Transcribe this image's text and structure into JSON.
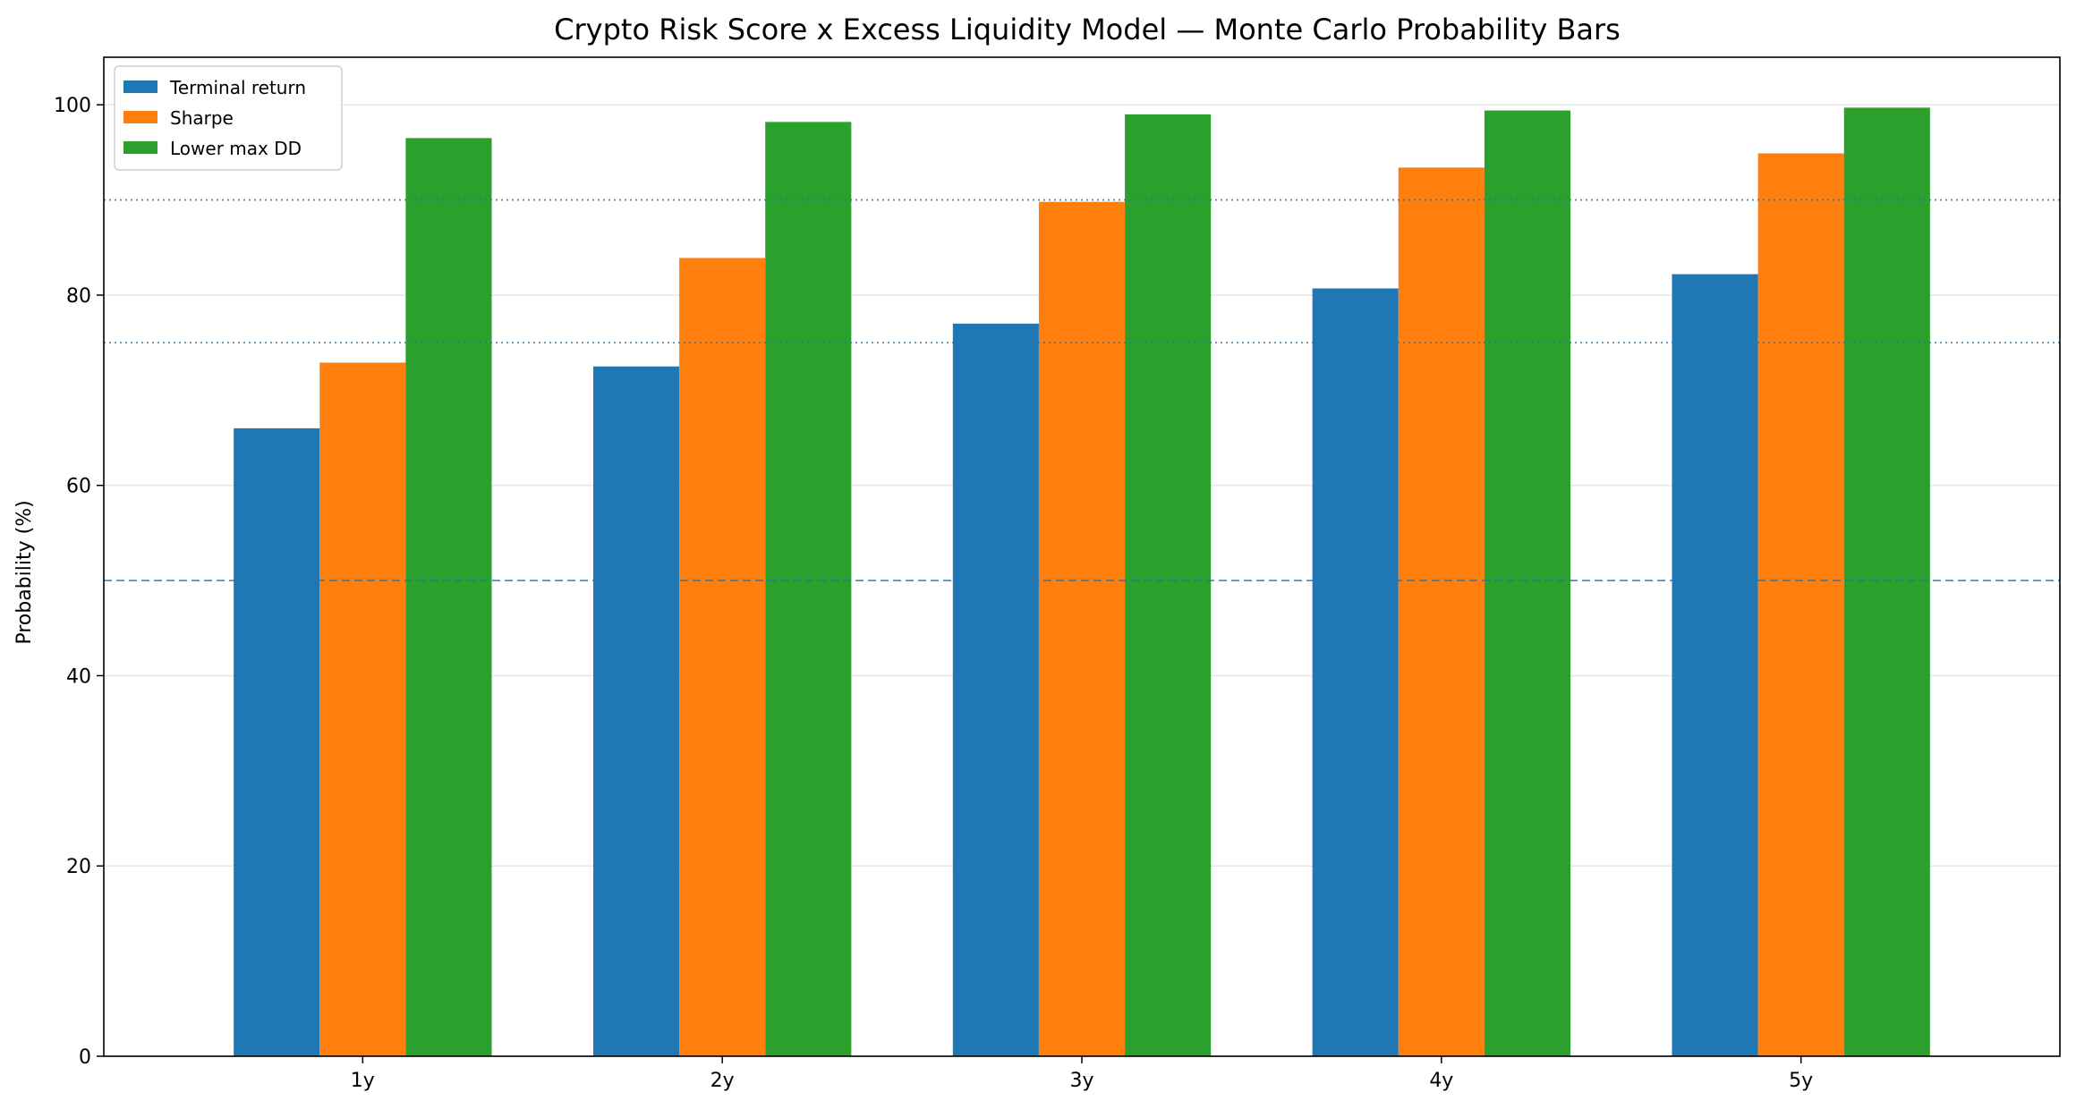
{
  "chart_data": {
    "type": "bar",
    "title": "Crypto Risk Score x Excess Liquidity Model — Monte Carlo Probability Bars",
    "xlabel": "",
    "ylabel": "Probability (%)",
    "categories": [
      "1y",
      "2y",
      "3y",
      "4y",
      "5y"
    ],
    "series": [
      {
        "name": "Terminal return",
        "color": "#1f77b4",
        "values": [
          66.0,
          72.5,
          77.0,
          80.7,
          82.2
        ]
      },
      {
        "name": "Sharpe",
        "color": "#ff7f0e",
        "values": [
          72.9,
          83.9,
          89.8,
          93.4,
          94.9
        ]
      },
      {
        "name": "Lower max DD",
        "color": "#2ca02c",
        "values": [
          96.5,
          98.2,
          99.0,
          99.4,
          99.7
        ]
      }
    ],
    "ylim": [
      0,
      105
    ],
    "yticks": [
      0,
      20,
      40,
      60,
      80,
      100
    ],
    "reference_lines": [
      {
        "value": 50,
        "style": "dashed",
        "color": "#1f77b4"
      },
      {
        "value": 75,
        "style": "dotted",
        "color": "#1f77b4"
      },
      {
        "value": 90,
        "style": "dotted",
        "color": "#1f77b4"
      }
    ],
    "grid": "y",
    "legend_position": "top-left"
  }
}
